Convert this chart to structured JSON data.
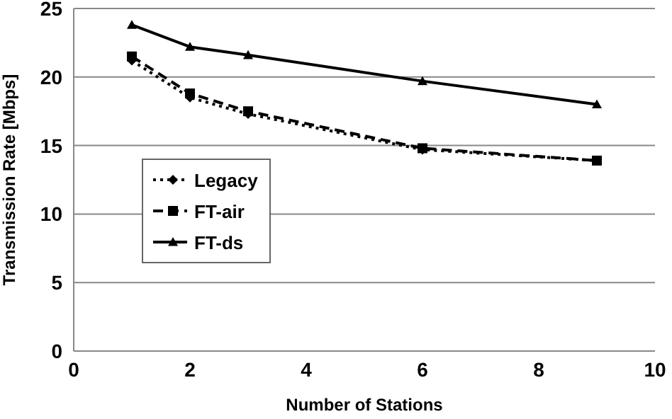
{
  "chart_data": {
    "type": "line",
    "xlabel": "Number of Stations",
    "ylabel": "Transmission Rate [Mbps]",
    "x": [
      1,
      2,
      3,
      6,
      9
    ],
    "series": [
      {
        "name": "Legacy",
        "color": "#000000",
        "values": [
          21.2,
          18.5,
          17.3,
          14.7,
          13.9
        ],
        "marker": "diamond",
        "line_style": "dotted"
      },
      {
        "name": "FT-air",
        "color": "#000000",
        "values": [
          21.5,
          18.8,
          17.5,
          14.8,
          13.9
        ],
        "marker": "square",
        "line_style": "dashed"
      },
      {
        "name": "FT-ds",
        "color": "#000000",
        "values": [
          23.8,
          22.2,
          21.6,
          19.7,
          18.0
        ],
        "marker": "triangle",
        "line_style": "solid"
      }
    ],
    "xlim": [
      0,
      10
    ],
    "xticks": [
      0,
      2,
      4,
      6,
      8,
      10
    ],
    "ylim": [
      0,
      25
    ],
    "yticks": [
      0,
      5,
      10,
      15,
      20,
      25
    ],
    "grid": "y",
    "legend": "left"
  }
}
